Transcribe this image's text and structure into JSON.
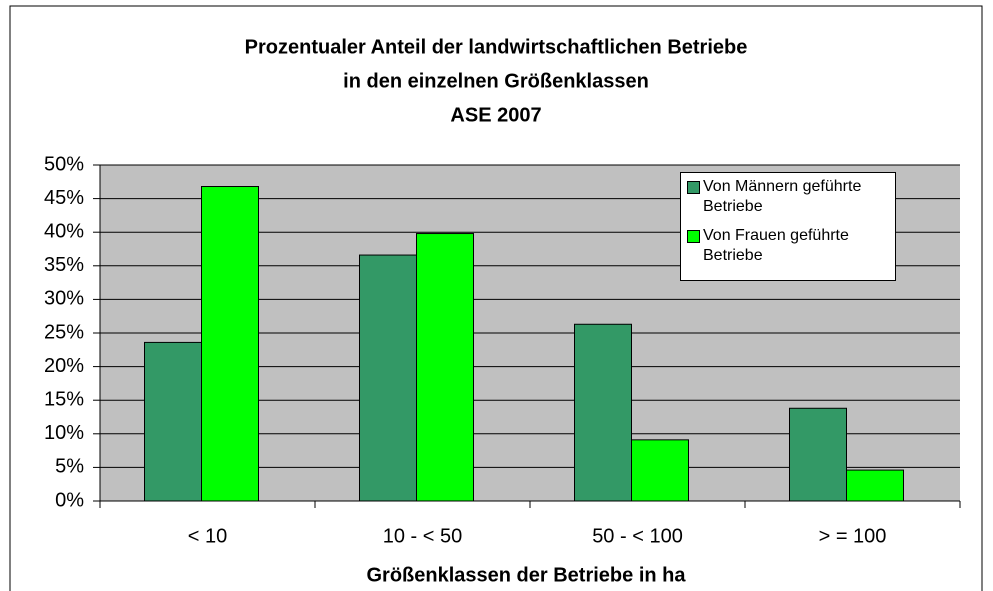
{
  "chart_data": {
    "type": "bar",
    "title": [
      "Prozentualer Anteil der landwirtschaftlichen Betriebe",
      "in den einzelnen Größenklassen",
      "ASE 2007"
    ],
    "x_label": "Größenklassen der Betriebe in ha",
    "categories": [
      "< 10",
      "10 - < 50",
      "50 - < 100",
      "> = 100"
    ],
    "series": [
      {
        "name": "Von Männern geführte Betriebe",
        "color": "#339966",
        "values": [
          23.6,
          36.6,
          26.3,
          13.8
        ]
      },
      {
        "name": "Von Frauen geführte Betriebe",
        "color": "#00ff00",
        "values": [
          46.8,
          39.8,
          9.1,
          4.6
        ]
      }
    ],
    "ylim": [
      0,
      50
    ],
    "yticks": [
      {
        "value": 0,
        "label": "0%"
      },
      {
        "value": 5,
        "label": "5%"
      },
      {
        "value": 10,
        "label": "10%"
      },
      {
        "value": 15,
        "label": "15%"
      },
      {
        "value": 20,
        "label": "20%"
      },
      {
        "value": 25,
        "label": "25%"
      },
      {
        "value": 30,
        "label": "30%"
      },
      {
        "value": 35,
        "label": "35%"
      },
      {
        "value": 40,
        "label": "40%"
      },
      {
        "value": 45,
        "label": "45%"
      },
      {
        "value": 50,
        "label": "50%"
      }
    ],
    "grid": true,
    "legend": "upper right"
  }
}
